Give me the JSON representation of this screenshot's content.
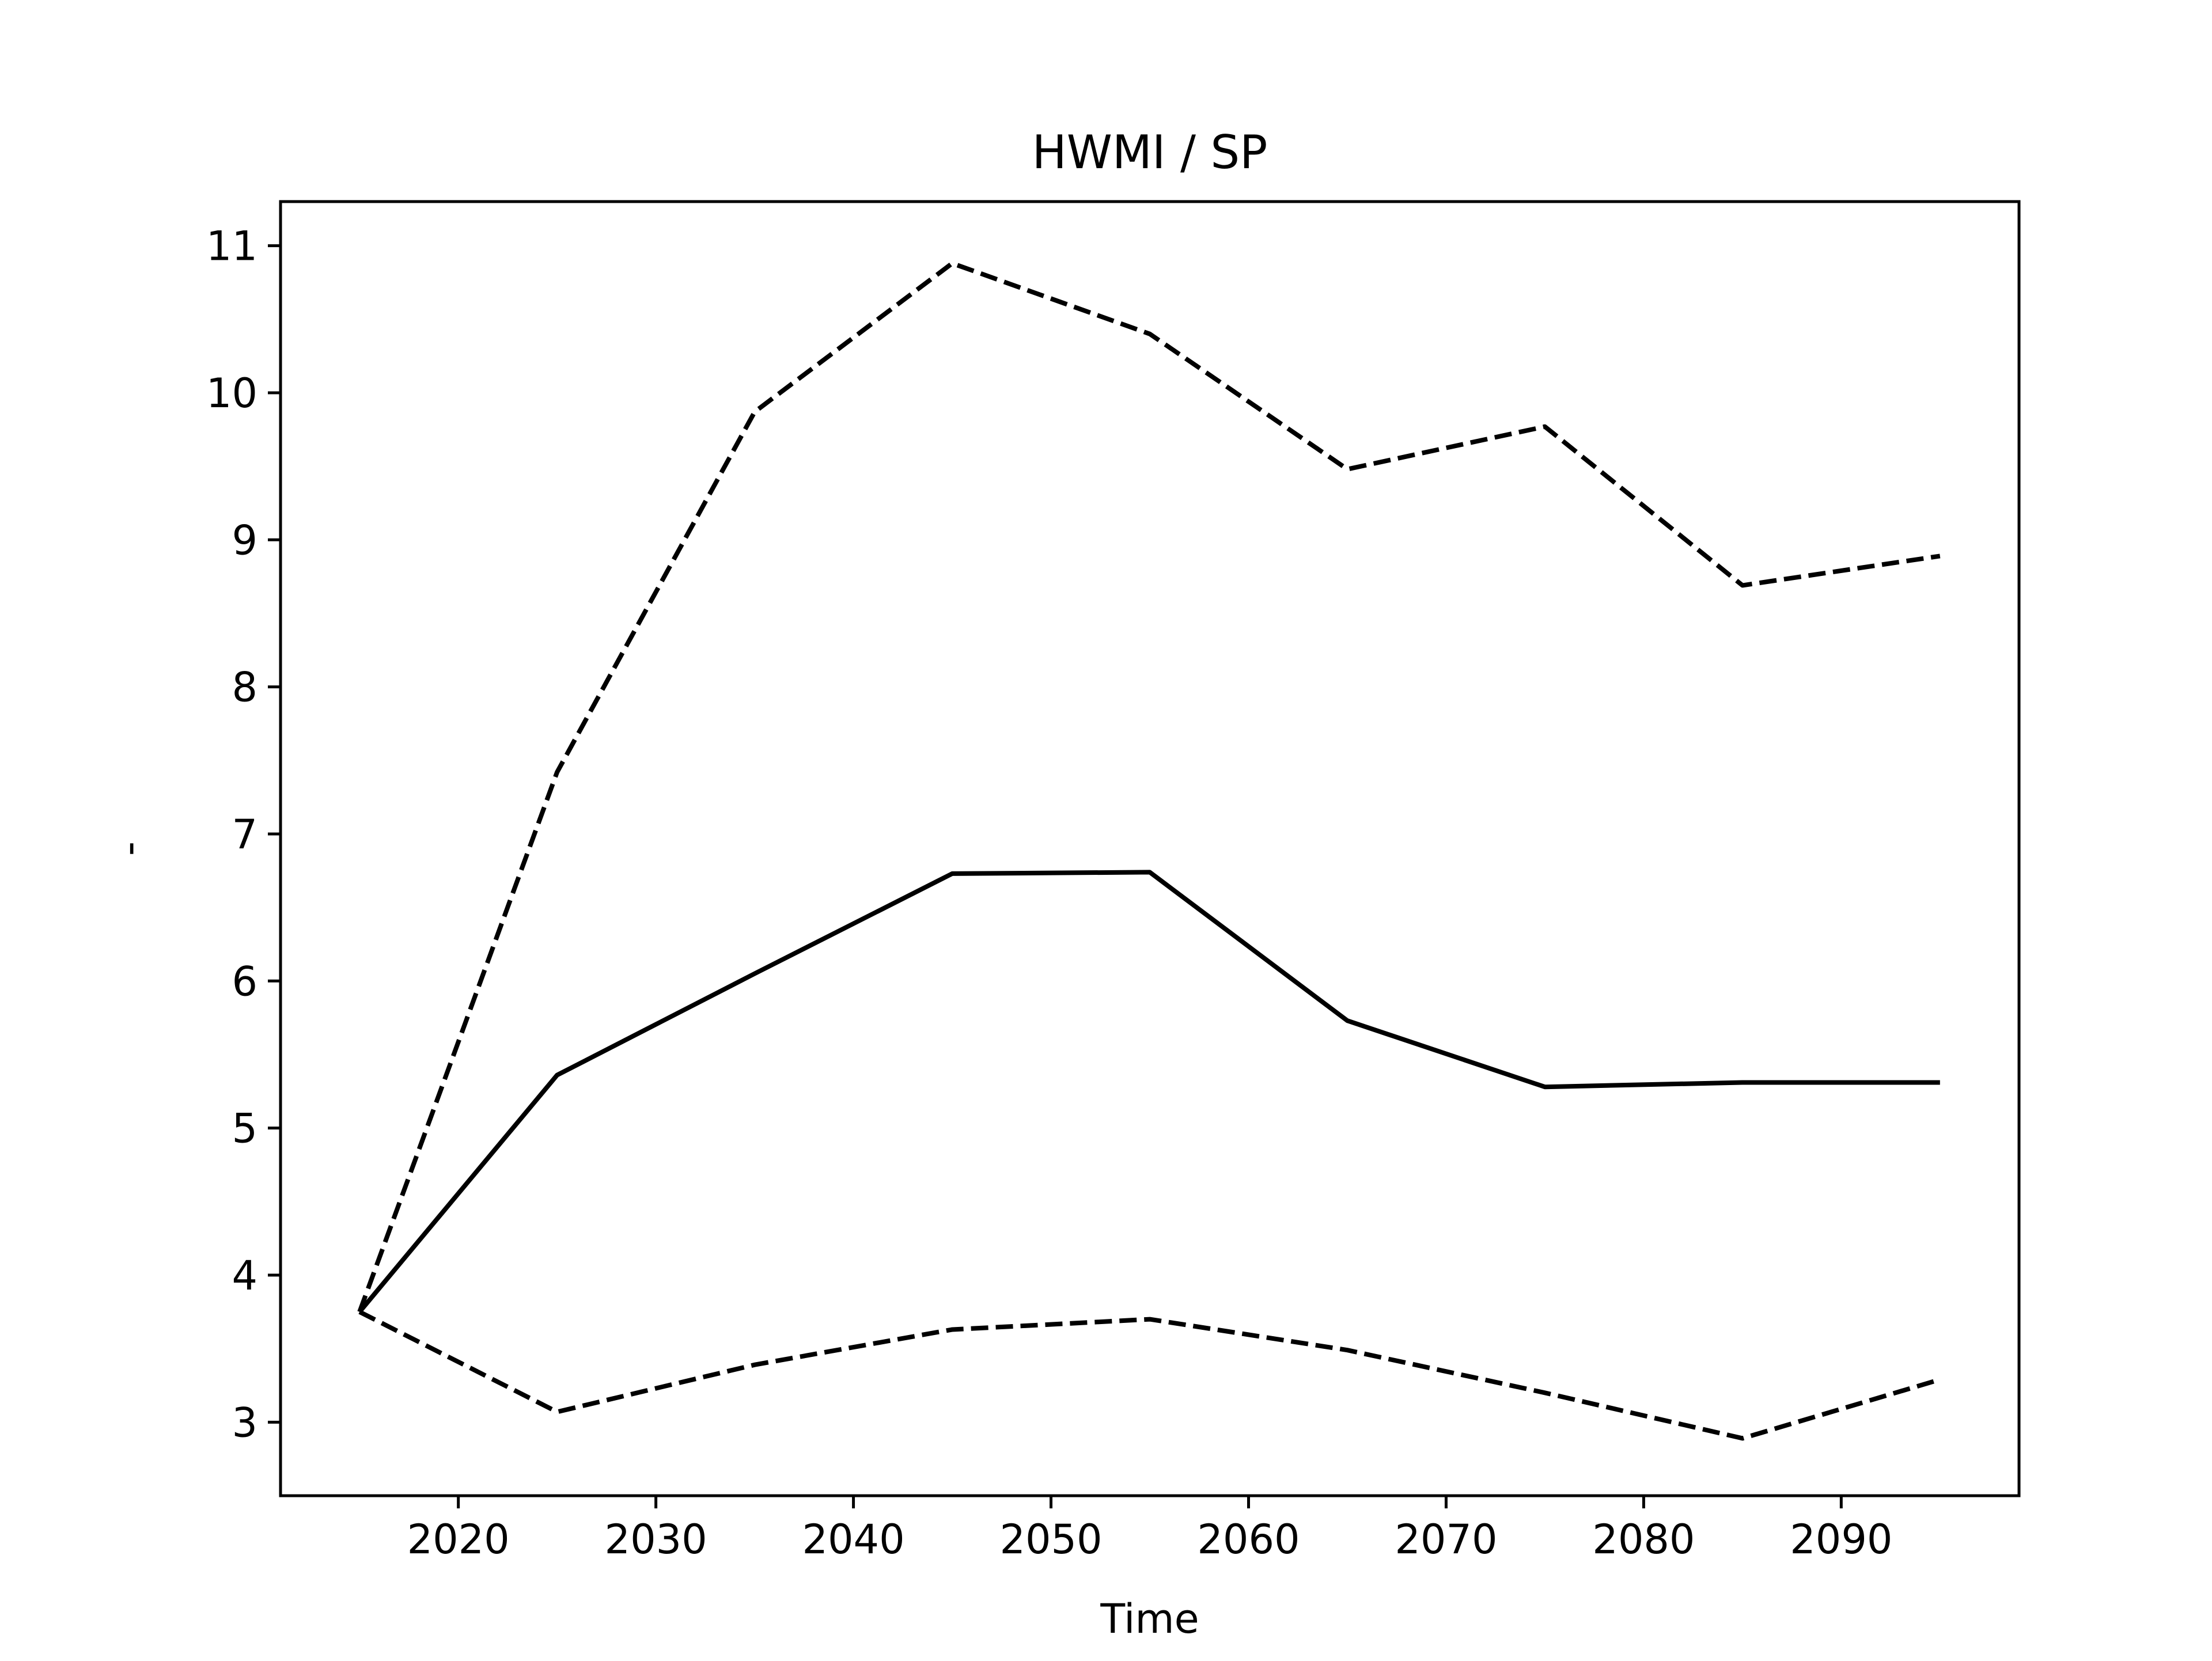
{
  "chart_data": {
    "type": "line",
    "title": "HWMI / SP",
    "xlabel": "Time",
    "ylabel": "-",
    "x": [
      2015,
      2025,
      2035,
      2045,
      2055,
      2065,
      2075,
      2085,
      2095
    ],
    "xlim": [
      2011,
      2099
    ],
    "ylim": [
      2.5,
      11.3
    ],
    "xticks": [
      2020,
      2030,
      2040,
      2050,
      2060,
      2070,
      2080,
      2090
    ],
    "yticks": [
      3,
      4,
      5,
      6,
      7,
      8,
      9,
      10,
      11
    ],
    "grid": false,
    "series": [
      {
        "style": "solid",
        "color": "#000000",
        "values": [
          3.75,
          5.36,
          6.05,
          6.73,
          6.74,
          5.73,
          5.28,
          5.31,
          5.31
        ]
      },
      {
        "style": "dashed",
        "color": "#000000",
        "values": [
          3.75,
          7.42,
          9.87,
          10.88,
          10.4,
          9.48,
          9.77,
          8.69,
          8.89
        ]
      },
      {
        "style": "dashed",
        "color": "#000000",
        "values": [
          3.75,
          3.07,
          3.39,
          3.63,
          3.7,
          3.49,
          3.2,
          2.89,
          3.29
        ]
      }
    ]
  }
}
